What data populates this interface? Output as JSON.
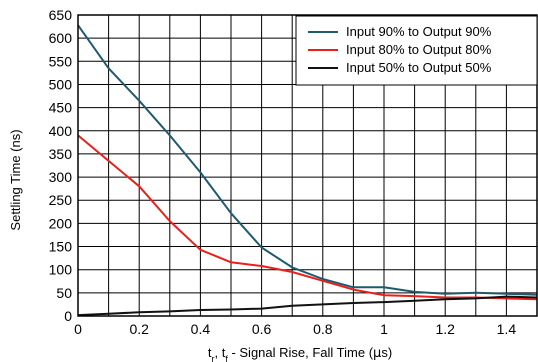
{
  "chart_data": {
    "type": "line",
    "xlabel": {
      "pre": "t",
      "sub_r": "r",
      "comma": ", t",
      "sub_f": "f",
      "main": " - Signal Rise, Fall Time (",
      "unit_greek": "μ",
      "unit": "s)"
    },
    "ylabel": "Settling Time (ns)",
    "xlim": [
      0,
      1.5
    ],
    "ylim": [
      0,
      650
    ],
    "xticks": [
      0,
      0.2,
      0.4,
      0.6,
      0.8,
      1,
      1.2,
      1.4
    ],
    "xtick_labels": [
      "0",
      "0.2",
      "0.4",
      "0.6",
      "0.8",
      "1",
      "1.2",
      "1.4"
    ],
    "yticks": [
      0,
      50,
      100,
      150,
      200,
      250,
      300,
      350,
      400,
      450,
      500,
      550,
      600,
      650
    ],
    "ytick_labels": [
      "0",
      "50",
      "100",
      "150",
      "200",
      "250",
      "300",
      "350",
      "400",
      "450",
      "500",
      "550",
      "600",
      "650"
    ],
    "grid": true,
    "legend_position": "top-right",
    "series": [
      {
        "name": "Input 90% to Output 90%",
        "color": "#1f5a6e",
        "points": [
          [
            0,
            628
          ],
          [
            0.1,
            535
          ],
          [
            0.2,
            465
          ],
          [
            0.3,
            390
          ],
          [
            0.4,
            310
          ],
          [
            0.5,
            222
          ],
          [
            0.6,
            148
          ],
          [
            0.7,
            105
          ],
          [
            0.8,
            80
          ],
          [
            0.9,
            62
          ],
          [
            1.0,
            62
          ],
          [
            1.1,
            52
          ],
          [
            1.2,
            48
          ],
          [
            1.3,
            50
          ],
          [
            1.4,
            48
          ],
          [
            1.5,
            46
          ]
        ]
      },
      {
        "name": "Input 80% to Output 80%",
        "color": "#e8201c",
        "points": [
          [
            0,
            390
          ],
          [
            0.1,
            335
          ],
          [
            0.2,
            280
          ],
          [
            0.3,
            205
          ],
          [
            0.4,
            143
          ],
          [
            0.5,
            116
          ],
          [
            0.6,
            108
          ],
          [
            0.7,
            95
          ],
          [
            0.8,
            76
          ],
          [
            0.9,
            57
          ],
          [
            1.0,
            45
          ],
          [
            1.1,
            43
          ],
          [
            1.2,
            40
          ],
          [
            1.3,
            40
          ],
          [
            1.4,
            38
          ],
          [
            1.5,
            36
          ]
        ]
      },
      {
        "name": "Input 50% to Output 50%",
        "color": "#111111",
        "points": [
          [
            0,
            2
          ],
          [
            0.1,
            5
          ],
          [
            0.2,
            8
          ],
          [
            0.3,
            10
          ],
          [
            0.4,
            13
          ],
          [
            0.5,
            14
          ],
          [
            0.6,
            16
          ],
          [
            0.7,
            22
          ],
          [
            0.8,
            25
          ],
          [
            0.9,
            28
          ],
          [
            1.0,
            30
          ],
          [
            1.1,
            33
          ],
          [
            1.2,
            36
          ],
          [
            1.3,
            38
          ],
          [
            1.4,
            42
          ],
          [
            1.5,
            40
          ]
        ]
      }
    ]
  }
}
